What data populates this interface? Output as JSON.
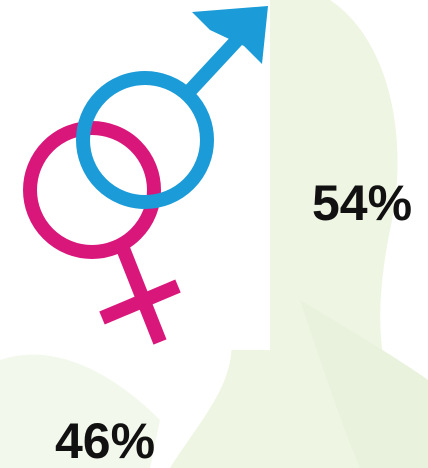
{
  "male": {
    "label": "54%"
  },
  "female": {
    "label": "46%"
  }
}
